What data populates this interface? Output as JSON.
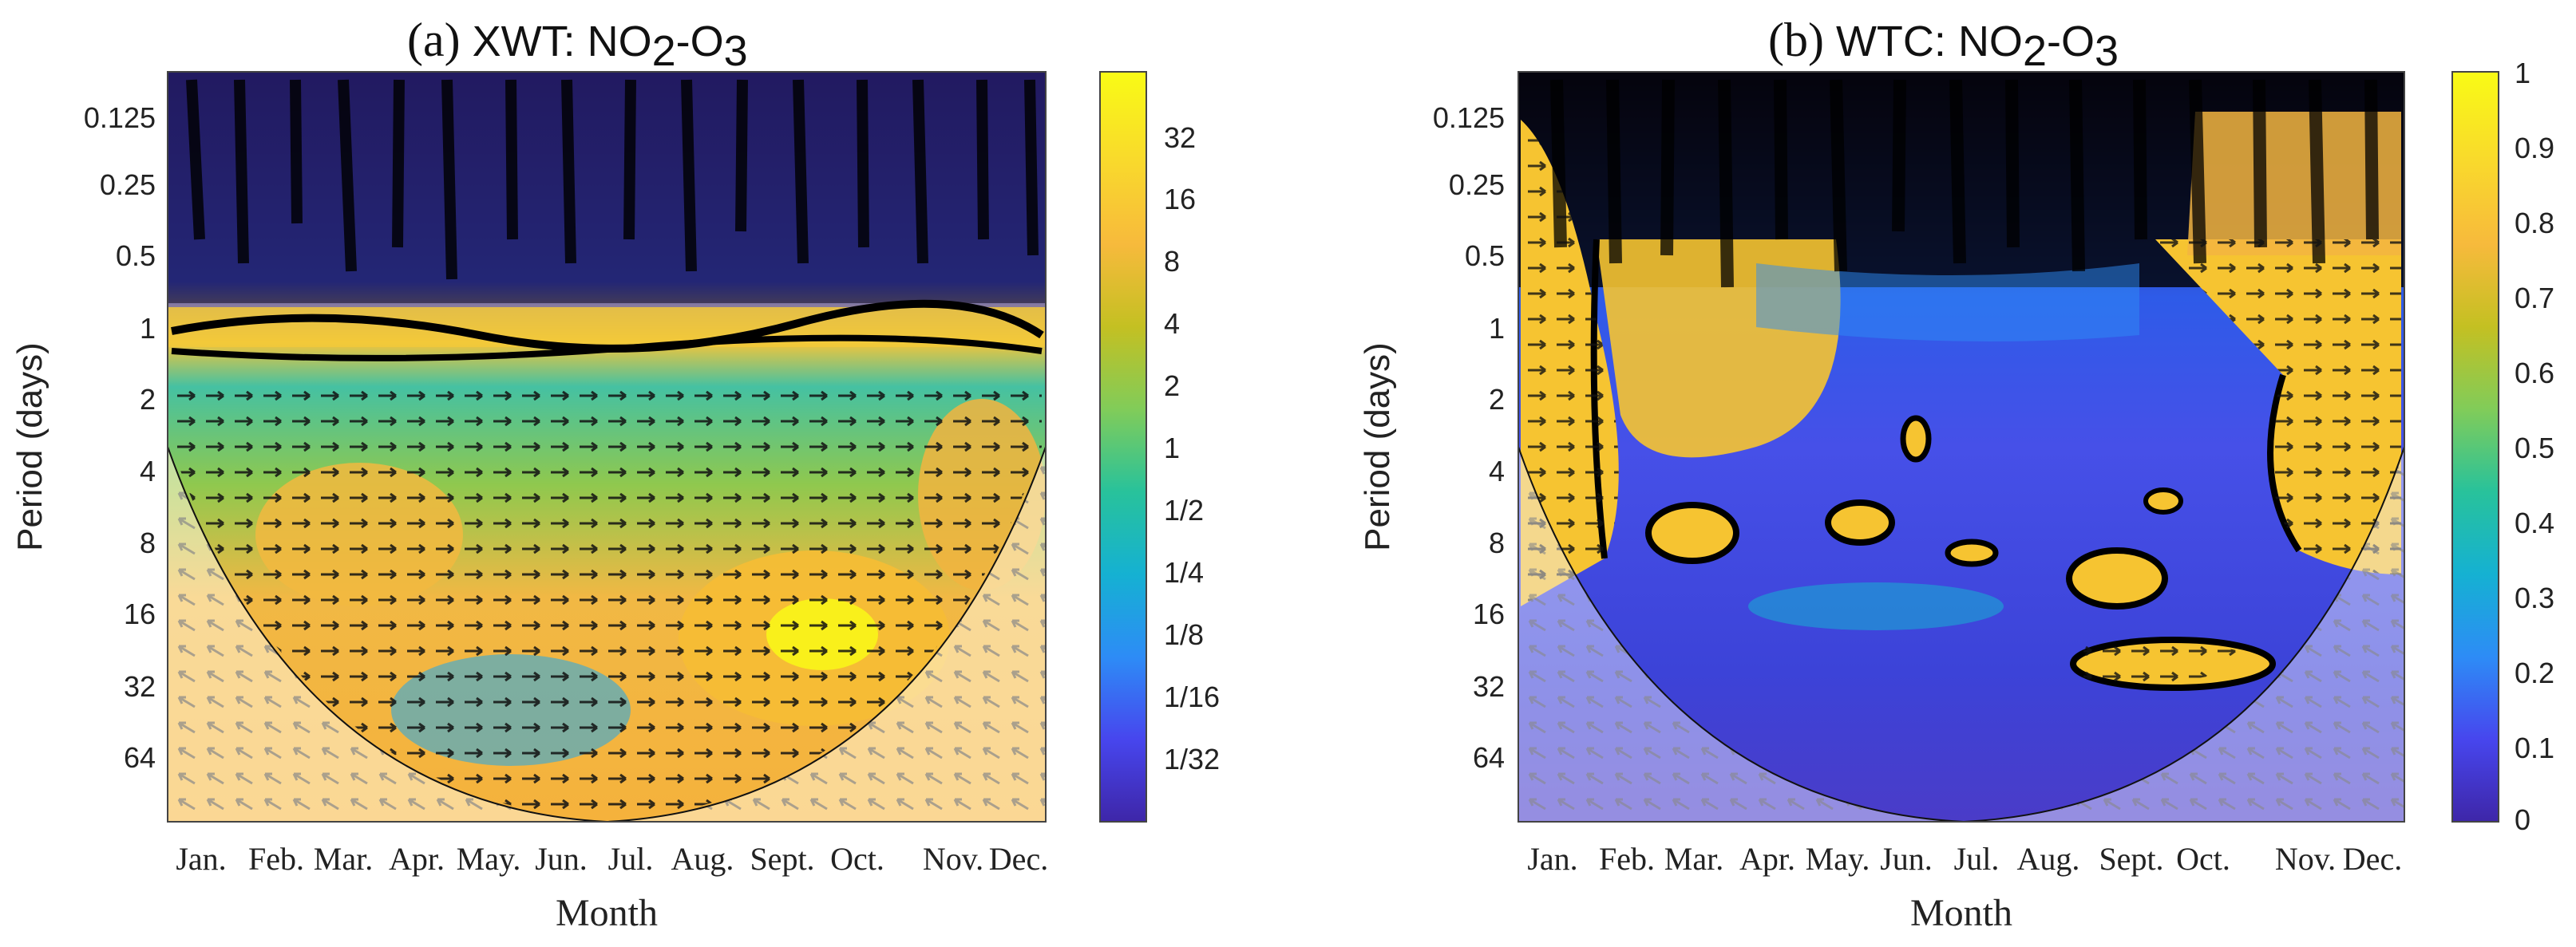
{
  "chart_data": [
    {
      "type": "heatmap",
      "panel_label": "(a)",
      "method": "XWT",
      "pair": {
        "a": "NO",
        "a_sub": "2",
        "sep": "-",
        "b": "O",
        "b_sub": "3"
      },
      "xlabel": "Month",
      "ylabel": "Period (days)",
      "x_categories": [
        "Jan.",
        "Feb.",
        "Mar.",
        "Apr.",
        "May.",
        "Jun.",
        "Jul.",
        "Aug.",
        "Sept.",
        "Oct.",
        "Nov.",
        "Dec."
      ],
      "y_ticks": [
        "0.125",
        "0.25",
        "0.5",
        "1",
        "2",
        "4",
        "8",
        "16",
        "32",
        "64"
      ],
      "y_values": [
        0.125,
        0.25,
        0.5,
        1,
        2,
        4,
        8,
        16,
        32,
        64
      ],
      "ylim": [
        0.0625,
        128
      ],
      "y_scale": "log2 (reversed)",
      "colorbar_ticks": [
        "32",
        "16",
        "8",
        "4",
        "2",
        "1",
        "1/2",
        "1/4",
        "1/8",
        "1/16",
        "1/32"
      ],
      "colorbar_values": [
        32,
        16,
        8,
        4,
        2,
        1,
        0.5,
        0.25,
        0.125,
        0.0625,
        0.03125
      ],
      "colormap": [
        "#3e26a8",
        "#4746ee",
        "#2d8cf6",
        "#15b1d2",
        "#28c29b",
        "#81cc59",
        "#c4c022",
        "#f7ba3c",
        "#f9d92c",
        "#f9fb15"
      ]
    },
    {
      "type": "heatmap",
      "panel_label": "(b)",
      "method": "WTC",
      "pair": {
        "a": "NO",
        "a_sub": "2",
        "sep": "-",
        "b": "O",
        "b_sub": "3"
      },
      "xlabel": "Month",
      "ylabel": "Period (days)",
      "x_categories": [
        "Jan.",
        "Feb.",
        "Mar.",
        "Apr.",
        "May.",
        "Jun.",
        "Jul.",
        "Aug.",
        "Sept.",
        "Oct.",
        "Nov.",
        "Dec."
      ],
      "y_ticks": [
        "0.125",
        "0.25",
        "0.5",
        "1",
        "2",
        "4",
        "8",
        "16",
        "32",
        "64"
      ],
      "y_values": [
        0.125,
        0.25,
        0.5,
        1,
        2,
        4,
        8,
        16,
        32,
        64
      ],
      "ylim": [
        0.0625,
        128
      ],
      "y_scale": "log2 (reversed)",
      "colorbar_ticks": [
        "1",
        "0.9",
        "0.8",
        "0.7",
        "0.6",
        "0.5",
        "0.4",
        "0.3",
        "0.2",
        "0.1",
        "0"
      ],
      "colorbar_values": [
        1,
        0.9,
        0.8,
        0.7,
        0.6,
        0.5,
        0.4,
        0.3,
        0.2,
        0.1,
        0
      ],
      "colormap": [
        "#3e26a8",
        "#4746ee",
        "#2d8cf6",
        "#15b1d2",
        "#28c29b",
        "#81cc59",
        "#c4c022",
        "#f7ba3c",
        "#f9d92c",
        "#f9fb15"
      ]
    }
  ]
}
